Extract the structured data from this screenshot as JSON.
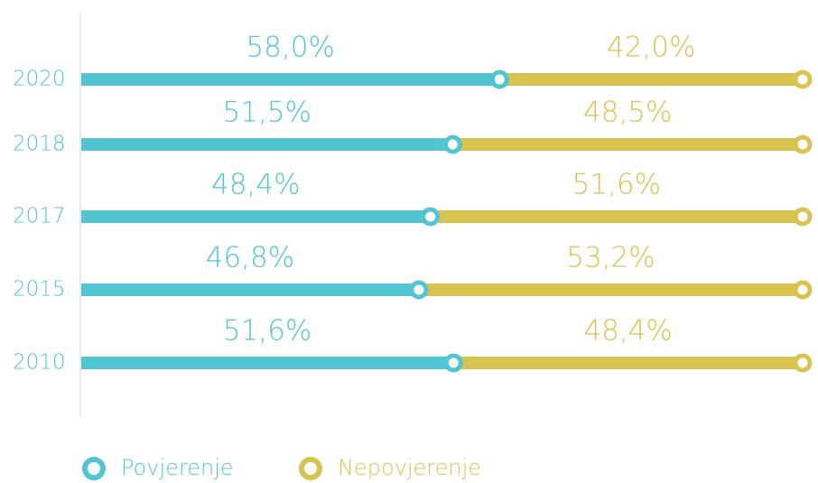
{
  "chart_data": {
    "type": "stacked-bar",
    "categories": [
      "2020",
      "2018",
      "2017",
      "2015",
      "2010"
    ],
    "series": [
      {
        "name": "Povjerenje",
        "color": "#52c5d2",
        "values": [
          58.0,
          51.5,
          48.4,
          46.8,
          51.6
        ],
        "value_labels": [
          "58,0%",
          "51,5%",
          "48,4%",
          "46,8%",
          "51,6%"
        ]
      },
      {
        "name": "Nepovjerenje",
        "color": "#d9c350",
        "values": [
          42.0,
          48.5,
          51.6,
          53.2,
          48.4
        ],
        "value_labels": [
          "42,0%",
          "48,5%",
          "51,6%",
          "53,2%",
          "48,4%"
        ]
      }
    ]
  }
}
